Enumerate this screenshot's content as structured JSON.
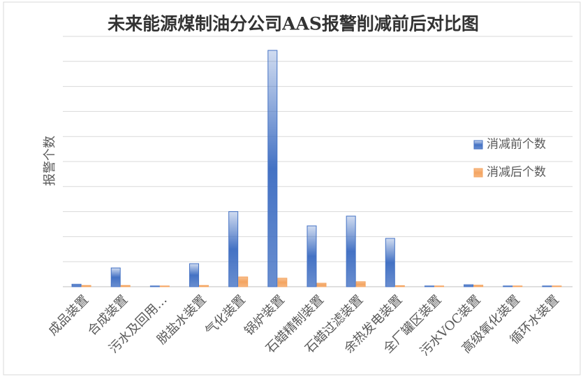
{
  "chart_data": {
    "type": "bar",
    "title": "未来能源煤制油分公司AAS报警削减前后对比图",
    "y_label": "报警个数",
    "categories": [
      "成品装置",
      "合成装置",
      "污水及回用…",
      "脱盐水装置",
      "气化装置",
      "锅炉装置",
      "石蜡精制装置",
      "石蜡过滤装置",
      "余热发电装置",
      "全厂罐区装置",
      "污水VOC装置",
      "高级氧化装置",
      "循环水装置"
    ],
    "series": [
      {
        "name": "消减前个数",
        "color": "#4472c4",
        "values": [
          10,
          75,
          3,
          92,
          300,
          944,
          243,
          282,
          193,
          3,
          8,
          3,
          3
        ]
      },
      {
        "name": "消减后个数",
        "color": "#f4a460",
        "values": [
          5,
          5,
          3,
          5,
          39,
          34,
          14,
          20,
          4,
          3,
          6,
          3,
          3
        ]
      }
    ],
    "ylim": [
      0,
      1000
    ],
    "yticks": [
      0,
      100,
      200,
      300,
      400,
      500,
      600,
      700,
      800,
      900,
      1000
    ],
    "ytick_labels": false,
    "grid": true,
    "legend": "right"
  }
}
